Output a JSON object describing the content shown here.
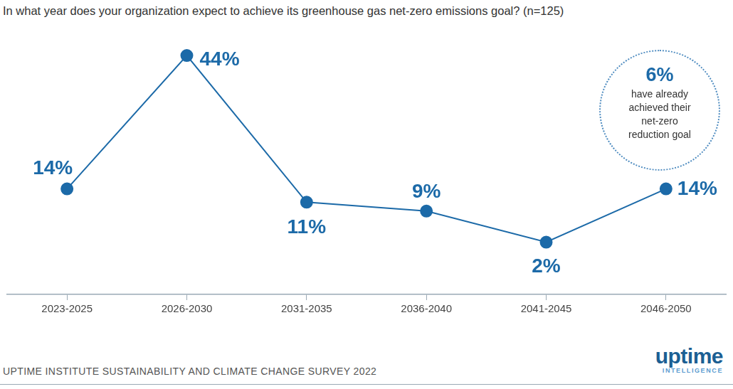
{
  "chart_data": {
    "type": "line",
    "title": "In what year does your organization expect to achieve its greenhouse gas net-zero emissions goal? (n=125)",
    "categories": [
      "2023-2025",
      "2026-2030",
      "2031-2035",
      "2036-2040",
      "2041-2045",
      "2046-2050"
    ],
    "values": [
      14,
      44,
      11,
      9,
      2,
      14
    ],
    "value_labels": [
      "14%",
      "44%",
      "11%",
      "9%",
      "2%",
      "14%"
    ],
    "color": "#1c6aa8",
    "marker": "circle",
    "line_style": "solid",
    "data_labels": true,
    "tick_labels": "x",
    "grid": false,
    "annotation": {
      "value": 6,
      "label": "6%",
      "text": "have already achieved their net-zero reduction goal"
    },
    "source": "UPTIME INSTITUTE SUSTAINABILITY AND CLIMATE CHANGE SURVEY 2022",
    "brand": "uptime",
    "brand_sub": "INTELLIGENCE"
  }
}
